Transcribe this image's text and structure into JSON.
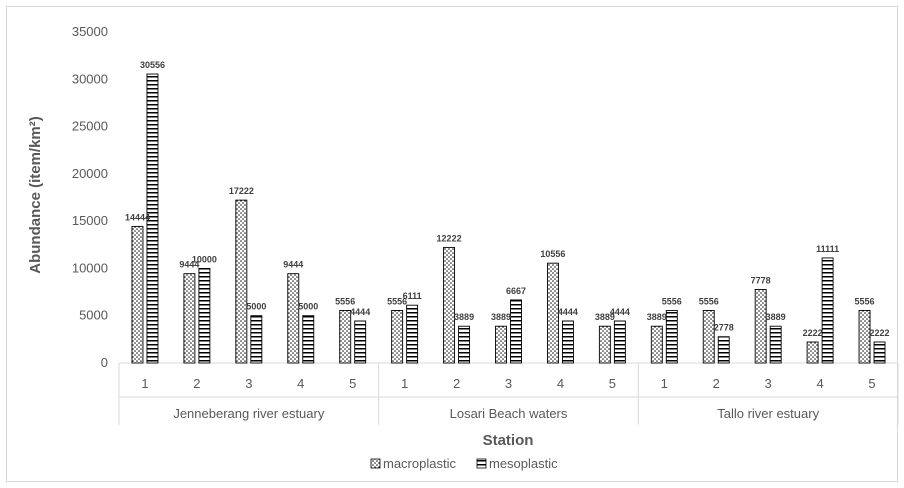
{
  "chart_data": {
    "type": "bar",
    "title": "",
    "xlabel": "Station",
    "ylabel": "Abundance (item/km²)",
    "ylim": [
      0,
      35000
    ],
    "yticks": [
      0,
      5000,
      10000,
      15000,
      20000,
      25000,
      30000,
      35000
    ],
    "groups": [
      {
        "label": "Jenneberang river estuary",
        "categories": [
          "1",
          "2",
          "3",
          "4",
          "5"
        ]
      },
      {
        "label": "Losari Beach waters",
        "categories": [
          "1",
          "2",
          "3",
          "4",
          "5"
        ]
      },
      {
        "label": "Tallo  river estuary",
        "categories": [
          "1",
          "2",
          "3",
          "4",
          "5"
        ]
      }
    ],
    "series": [
      {
        "name": "macroplastic",
        "pattern": "dots",
        "values": [
          14444,
          9444,
          17222,
          9444,
          5556,
          5556,
          12222,
          3889,
          10556,
          3889,
          3889,
          5556,
          7778,
          2222,
          5556
        ],
        "labels": [
          "14444",
          "9444",
          "17222",
          "9444",
          "5556",
          "5556",
          "12222",
          "3889",
          "10556",
          "3889",
          "3889",
          "5556",
          "7778",
          "2222",
          "5556"
        ]
      },
      {
        "name": "mesoplastic",
        "pattern": "horizontal-lines",
        "values": [
          30556,
          10000,
          5000,
          5000,
          4444,
          6111,
          3889,
          6667,
          4444,
          4444,
          5556,
          2778,
          3889,
          11111,
          2222
        ],
        "labels": [
          "30556",
          "10000",
          "5000",
          "5000",
          "4444",
          "6111",
          "3889",
          "6667",
          "4444",
          "4444",
          "5556",
          "2778",
          "3889",
          "11111",
          "2222"
        ]
      }
    ],
    "grid": false,
    "legend_position": "bottom"
  }
}
